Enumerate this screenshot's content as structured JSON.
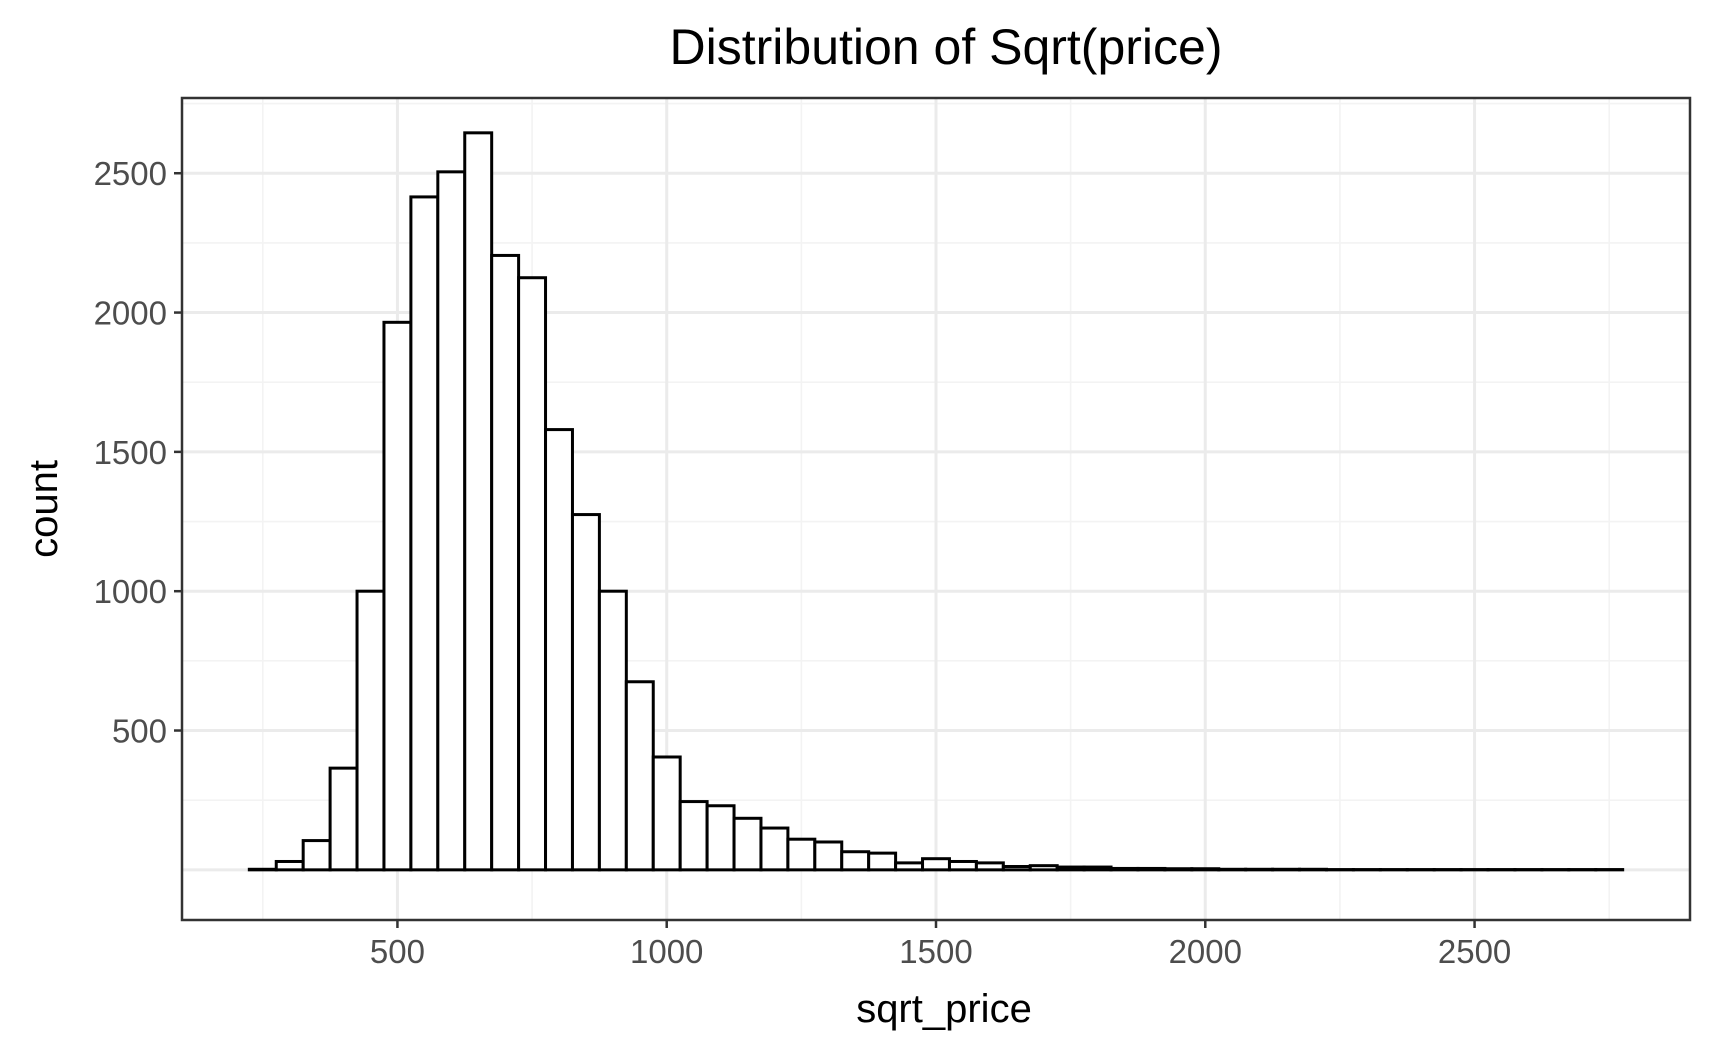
{
  "chart_data": {
    "type": "bar",
    "subtype": "histogram",
    "title": "Distribution of Sqrt(price)",
    "xlabel": "sqrt_price",
    "ylabel": "count",
    "xlim": [
      100,
      2900
    ],
    "ylim": [
      -180,
      2770
    ],
    "x_ticks": [
      500,
      1000,
      1500,
      2000,
      2500
    ],
    "y_ticks": [
      500,
      1000,
      1500,
      2000,
      2500
    ],
    "x_tick_labels": [
      "500",
      "1000",
      "1500",
      "2000",
      "2500"
    ],
    "y_tick_labels": [
      "500",
      "1000",
      "1500",
      "2000",
      "2500"
    ],
    "grid": true,
    "bin_width": 50,
    "bins_start": 225,
    "counts": [
      2,
      30,
      105,
      365,
      1000,
      1965,
      2415,
      2505,
      2645,
      2205,
      2125,
      1580,
      1275,
      1000,
      675,
      405,
      245,
      230,
      185,
      150,
      110,
      100,
      65,
      60,
      25,
      40,
      30,
      25,
      12,
      15,
      10,
      10,
      5,
      5,
      4,
      4,
      2,
      2,
      2,
      2,
      1,
      1,
      1,
      1,
      1,
      1,
      1,
      1,
      1,
      1,
      1
    ]
  }
}
